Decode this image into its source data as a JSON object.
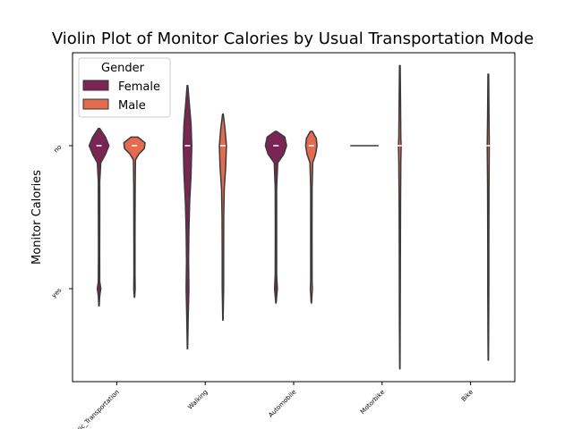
{
  "chart_data": {
    "type": "violin",
    "title": "Violin Plot of Monitor Calories by Usual Transportation Mode",
    "xlabel": "",
    "ylabel": "Monitor Calories",
    "categories": [
      "Public_Transportation",
      "Walking",
      "Automobile",
      "Motorbike",
      "Bike"
    ],
    "y_categories": [
      "no",
      "yes"
    ],
    "ylim": [
      -0.65,
      1.65
    ],
    "legend": {
      "title": "Gender",
      "placement": "top-left",
      "entries": [
        {
          "name": "Female",
          "color": "#7b2555"
        },
        {
          "name": "Male",
          "color": "#e46a50"
        }
      ]
    },
    "series": [
      {
        "name": "Female",
        "color": "#7b2555",
        "violins": [
          {
            "category": "Public_Transportation",
            "median": 0,
            "extent": [
              -0.12,
              1.12
            ],
            "profile": [
              [
                -0.12,
                0.02
              ],
              [
                -0.06,
                0.18
              ],
              [
                0.0,
                0.28
              ],
              [
                0.06,
                0.18
              ],
              [
                0.12,
                0.05
              ],
              [
                0.25,
                0.02
              ],
              [
                0.5,
                0.018
              ],
              [
                0.75,
                0.016
              ],
              [
                0.95,
                0.02
              ],
              [
                1.0,
                0.05
              ],
              [
                1.05,
                0.02
              ],
              [
                1.12,
                0.005
              ]
            ]
          },
          {
            "category": "Walking",
            "median": 0,
            "extent": [
              -0.42,
              1.42
            ],
            "profile": [
              [
                -0.42,
                0.01
              ],
              [
                -0.3,
                0.05
              ],
              [
                -0.15,
                0.1
              ],
              [
                0.0,
                0.12
              ],
              [
                0.2,
                0.1
              ],
              [
                0.4,
                0.06
              ],
              [
                0.6,
                0.04
              ],
              [
                0.8,
                0.03
              ],
              [
                1.0,
                0.04
              ],
              [
                1.2,
                0.02
              ],
              [
                1.42,
                0.005
              ]
            ]
          },
          {
            "category": "Automobile",
            "median": 0,
            "extent": [
              -0.1,
              1.1
            ],
            "profile": [
              [
                -0.1,
                0.02
              ],
              [
                -0.06,
                0.25
              ],
              [
                0.0,
                0.3
              ],
              [
                0.06,
                0.22
              ],
              [
                0.12,
                0.05
              ],
              [
                0.3,
                0.02
              ],
              [
                0.6,
                0.018
              ],
              [
                0.9,
                0.02
              ],
              [
                1.0,
                0.04
              ],
              [
                1.1,
                0.005
              ]
            ]
          },
          {
            "category": "Motorbike",
            "median": 0,
            "extent": [
              0,
              0
            ],
            "profile": [
              [
                0,
                0.4
              ]
            ]
          }
        ]
      },
      {
        "name": "Male",
        "color": "#e46a50",
        "violins": [
          {
            "category": "Public_Transportation",
            "median": 0,
            "extent": [
              -0.06,
              1.06
            ],
            "profile": [
              [
                -0.06,
                0.1
              ],
              [
                -0.02,
                0.3
              ],
              [
                0.02,
                0.28
              ],
              [
                0.06,
                0.12
              ],
              [
                0.1,
                0.03
              ],
              [
                0.3,
                0.02
              ],
              [
                0.6,
                0.016
              ],
              [
                0.9,
                0.015
              ],
              [
                1.0,
                0.02
              ],
              [
                1.06,
                0.005
              ]
            ]
          },
          {
            "category": "Walking",
            "median": 0,
            "extent": [
              -0.22,
              1.22
            ],
            "profile": [
              [
                -0.22,
                0.01
              ],
              [
                -0.12,
                0.06
              ],
              [
                0.0,
                0.1
              ],
              [
                0.15,
                0.08
              ],
              [
                0.3,
                0.04
              ],
              [
                0.5,
                0.025
              ],
              [
                0.8,
                0.02
              ],
              [
                1.0,
                0.02
              ],
              [
                1.22,
                0.005
              ]
            ]
          },
          {
            "category": "Automobile",
            "median": 0,
            "extent": [
              -0.1,
              1.1
            ],
            "profile": [
              [
                -0.1,
                0.03
              ],
              [
                -0.05,
                0.14
              ],
              [
                0.0,
                0.16
              ],
              [
                0.06,
                0.12
              ],
              [
                0.12,
                0.04
              ],
              [
                0.3,
                0.02
              ],
              [
                0.6,
                0.018
              ],
              [
                0.95,
                0.02
              ],
              [
                1.0,
                0.03
              ],
              [
                1.1,
                0.005
              ]
            ]
          },
          {
            "category": "Motorbike",
            "median": 0,
            "extent": [
              -0.56,
              1.56
            ],
            "profile": [
              [
                -0.56,
                0.01
              ],
              [
                -0.3,
                0.02
              ],
              [
                -0.05,
                0.03
              ],
              [
                0.0,
                0.04
              ],
              [
                0.1,
                0.03
              ],
              [
                0.4,
                0.02
              ],
              [
                0.8,
                0.015
              ],
              [
                1.2,
                0.012
              ],
              [
                1.56,
                0.005
              ]
            ]
          },
          {
            "category": "Bike",
            "median": 0,
            "extent": [
              -0.5,
              1.5
            ],
            "profile": [
              [
                -0.5,
                0.01
              ],
              [
                -0.2,
                0.02
              ],
              [
                0.0,
                0.03
              ],
              [
                0.3,
                0.02
              ],
              [
                0.7,
                0.015
              ],
              [
                1.0,
                0.015
              ],
              [
                1.3,
                0.01
              ],
              [
                1.5,
                0.005
              ]
            ]
          }
        ]
      }
    ]
  }
}
